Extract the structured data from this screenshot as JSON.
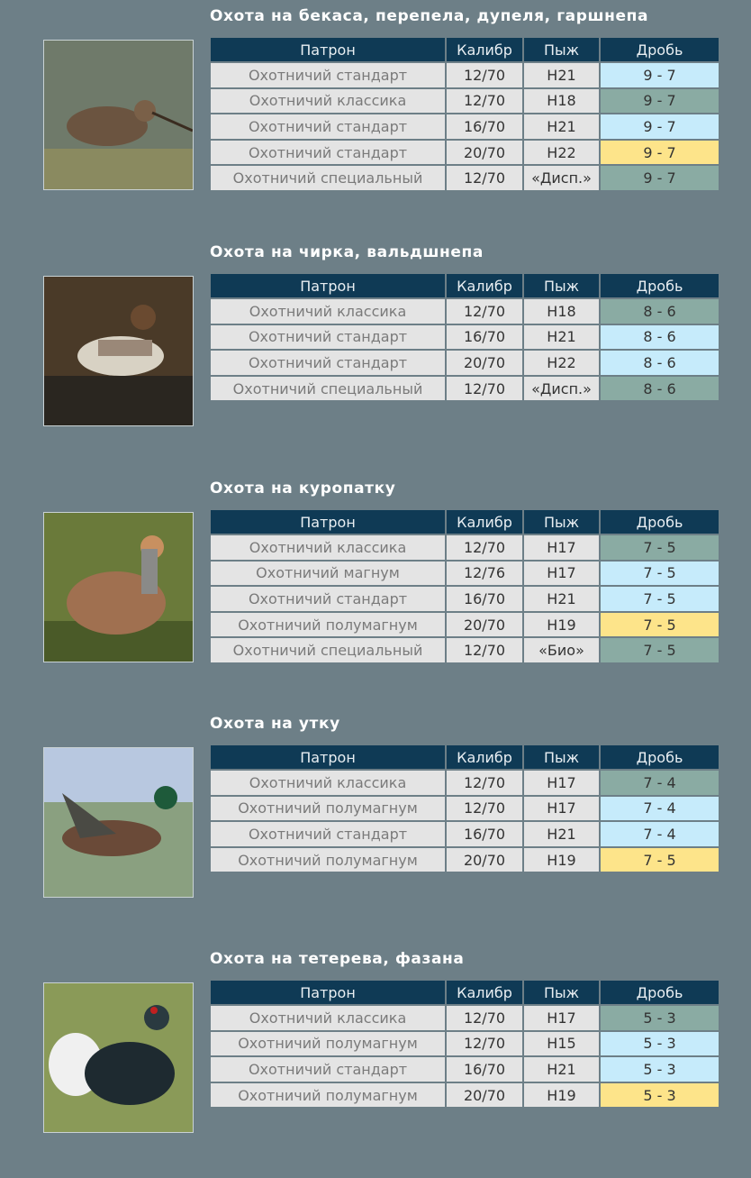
{
  "colors": {
    "background": "#6d7f87",
    "header": "#0f3a55",
    "cell": "#e4e4e4",
    "blue": "#c6ebfb",
    "green": "#8aaba3",
    "yellow": "#fde48a"
  },
  "headers": {
    "patron": "Патрон",
    "caliber": "Калибр",
    "wad": "Пыж",
    "shot": "Дробь"
  },
  "sections": [
    {
      "title": "Охота на бекаса, перепела, дупеля, гаршнепа",
      "bird": "snipe",
      "rows": [
        {
          "patron": "Охотничий стандарт",
          "caliber": "12/70",
          "wad": "Н21",
          "shot": "9 - 7",
          "color": "blue"
        },
        {
          "patron": "Охотничий классика",
          "caliber": "12/70",
          "wad": "Н18",
          "shot": "9 - 7",
          "color": "green"
        },
        {
          "patron": "Охотничий стандарт",
          "caliber": "16/70",
          "wad": "Н21",
          "shot": "9 - 7",
          "color": "blue"
        },
        {
          "patron": "Охотничий стандарт",
          "caliber": "20/70",
          "wad": "Н22",
          "shot": "9 - 7",
          "color": "yellow"
        },
        {
          "patron": "Охотничий специальный",
          "caliber": "12/70",
          "wad": "«Дисп.»",
          "shot": "9 - 7",
          "color": "green"
        }
      ]
    },
    {
      "title": "Охота на чирка, вальдшнепа",
      "bird": "teal",
      "rows": [
        {
          "patron": "Охотничий классика",
          "caliber": "12/70",
          "wad": "Н18",
          "shot": "8 - 6",
          "color": "green"
        },
        {
          "patron": "Охотничий стандарт",
          "caliber": "16/70",
          "wad": "Н21",
          "shot": "8 - 6",
          "color": "blue"
        },
        {
          "patron": "Охотничий стандарт",
          "caliber": "20/70",
          "wad": "Н22",
          "shot": "8 - 6",
          "color": "blue"
        },
        {
          "patron": "Охотничий специальный",
          "caliber": "12/70",
          "wad": "«Дисп.»",
          "shot": "8 - 6",
          "color": "green"
        }
      ]
    },
    {
      "title": "Охота на куропатку",
      "bird": "partridge",
      "rows": [
        {
          "patron": "Охотничий классика",
          "caliber": "12/70",
          "wad": "Н17",
          "shot": "7 - 5",
          "color": "green"
        },
        {
          "patron": "Охотничий магнум",
          "caliber": "12/76",
          "wad": "Н17",
          "shot": "7 - 5",
          "color": "blue"
        },
        {
          "patron": "Охотничий стандарт",
          "caliber": "16/70",
          "wad": "Н21",
          "shot": "7 - 5",
          "color": "blue"
        },
        {
          "patron": "Охотничий полумагнум",
          "caliber": "20/70",
          "wad": "Н19",
          "shot": "7 - 5",
          "color": "yellow"
        },
        {
          "patron": "Охотничий специальный",
          "caliber": "12/70",
          "wad": "«Био»",
          "shot": "7 - 5",
          "color": "green"
        }
      ]
    },
    {
      "title": "Охота на утку",
      "bird": "duck",
      "rows": [
        {
          "patron": "Охотничий классика",
          "caliber": "12/70",
          "wad": "Н17",
          "shot": "7 - 4",
          "color": "green"
        },
        {
          "patron": "Охотничий полумагнум",
          "caliber": "12/70",
          "wad": "Н17",
          "shot": "7 - 4",
          "color": "blue"
        },
        {
          "patron": "Охотничий стандарт",
          "caliber": "16/70",
          "wad": "Н21",
          "shot": "7 - 4",
          "color": "blue"
        },
        {
          "patron": "Охотничий полумагнум",
          "caliber": "20/70",
          "wad": "Н19",
          "shot": "7 - 5",
          "color": "yellow"
        }
      ]
    },
    {
      "title": "Охота на тетерева, фазана",
      "bird": "black-grouse",
      "rows": [
        {
          "patron": "Охотничий классика",
          "caliber": "12/70",
          "wad": "Н17",
          "shot": "5 - 3",
          "color": "green"
        },
        {
          "patron": "Охотничий полумагнум",
          "caliber": "12/70",
          "wad": "Н15",
          "shot": "5 - 3",
          "color": "blue"
        },
        {
          "patron": "Охотничий стандарт",
          "caliber": "16/70",
          "wad": "Н21",
          "shot": "5 - 3",
          "color": "blue"
        },
        {
          "patron": "Охотничий полумагнум",
          "caliber": "20/70",
          "wad": "Н19",
          "shot": "5 - 3",
          "color": "yellow"
        }
      ]
    }
  ]
}
